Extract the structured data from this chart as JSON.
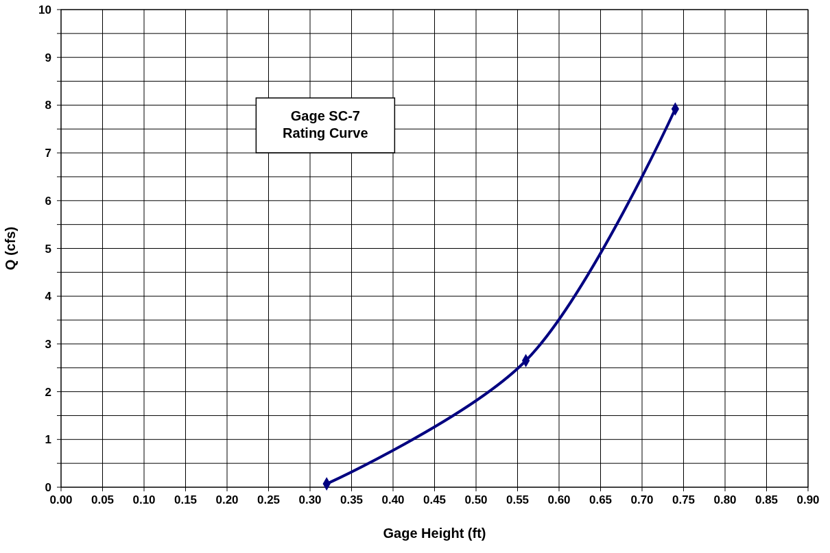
{
  "chart_data": {
    "type": "line",
    "title": "Gage SC-7\nRating Curve",
    "xlabel": "Gage Height (ft)",
    "ylabel": "Q (cfs)",
    "x": [
      0.32,
      0.56,
      0.74
    ],
    "series": [
      {
        "color": "#000080",
        "values": [
          0.07,
          2.65,
          7.92
        ]
      }
    ],
    "xlim": [
      0,
      0.9
    ],
    "xticks": [
      {
        "value": 0,
        "label": "0.00"
      },
      0.05,
      {
        "value": 0.1,
        "label": "0.10"
      },
      0.15,
      {
        "value": 0.2,
        "label": "0.20"
      },
      0.25,
      {
        "value": 0.3,
        "label": "0.30"
      },
      0.35,
      {
        "value": 0.4,
        "label": "0.40"
      },
      0.45,
      {
        "value": 0.5,
        "label": "0.50"
      },
      0.55,
      {
        "value": 0.6,
        "label": "0.60"
      },
      0.65,
      {
        "value": 0.7,
        "label": "0.70"
      },
      0.75,
      {
        "value": 0.8,
        "label": "0.80"
      },
      0.85,
      {
        "value": 0.9,
        "label": "0.90"
      }
    ],
    "ylim": [
      0,
      10
    ],
    "yticks": [
      0,
      {
        "value": 0.5,
        "label": null
      },
      1,
      {
        "value": 1.5,
        "label": null
      },
      2,
      {
        "value": 2.5,
        "label": null
      },
      3,
      {
        "value": 3.5,
        "label": null
      },
      4,
      {
        "value": 4.5,
        "label": null
      },
      5,
      {
        "value": 5.5,
        "label": null
      },
      6,
      {
        "value": 6.5,
        "label": null
      },
      7,
      {
        "value": 7.5,
        "label": null
      },
      8,
      {
        "value": 8.5,
        "label": null
      },
      9,
      {
        "value": 9.5,
        "label": null
      },
      10
    ],
    "grid": true,
    "marker": "diamond",
    "line_style": "solid"
  }
}
